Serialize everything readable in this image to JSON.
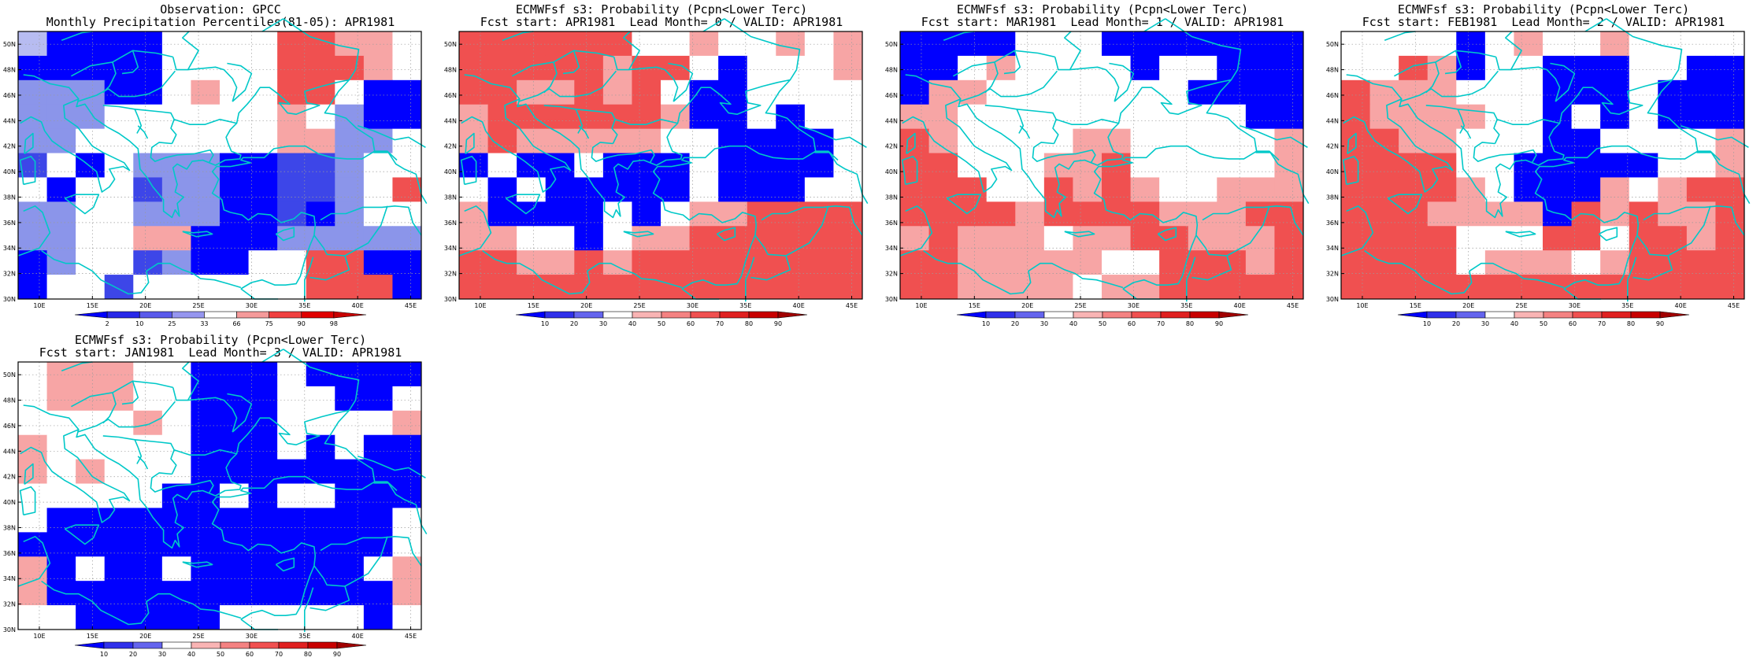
{
  "panels": [
    {
      "title": "Observation: GPCC",
      "subtitle": "Monthly Precipitation Percentiles(81-05): APR1981"
    },
    {
      "title": "ECMWFsf s3: Probability (Pcpn<Lower Terc)",
      "subtitle": "Fcst start: APR1981  Lead Month= 0 / VALID: APR1981"
    },
    {
      "title": "ECMWFsf s3: Probability (Pcpn<Lower Terc)",
      "subtitle": "Fcst start: MAR1981  Lead Month= 1 / VALID: APR1981"
    },
    {
      "title": "ECMWFsf s3: Probability (Pcpn<Lower Terc)",
      "subtitle": "Fcst start: FEB1981  Lead Month= 2 / VALID: APR1981"
    },
    {
      "title": "ECMWFsf s3: Probability (Pcpn<Lower Terc)",
      "subtitle": "Fcst start: JAN1981  Lead Month= 3 / VALID: APR1981"
    }
  ],
  "chart_data": [
    {
      "type": "heatmap",
      "grid": "obs",
      "x_ticks": [
        "10E",
        "15E",
        "20E",
        "25E",
        "30E",
        "35E",
        "40E",
        "45E"
      ],
      "y_ticks": [
        "30N",
        "32N",
        "34N",
        "36N",
        "38N",
        "40N",
        "42N",
        "44N",
        "46N",
        "48N",
        "50N"
      ],
      "colorbar_ticks": [
        "2",
        "10",
        "25",
        "33",
        "66",
        "75",
        "90",
        "98"
      ]
    },
    {
      "type": "heatmap",
      "grid": "g0",
      "x_ticks": [
        "10E",
        "15E",
        "20E",
        "25E",
        "30E",
        "35E",
        "40E",
        "45E"
      ],
      "y_ticks": [
        "30N",
        "32N",
        "34N",
        "36N",
        "38N",
        "40N",
        "42N",
        "44N",
        "46N",
        "48N",
        "50N"
      ],
      "colorbar_ticks": [
        "10",
        "20",
        "30",
        "40",
        "50",
        "60",
        "70",
        "80",
        "90"
      ]
    },
    {
      "type": "heatmap",
      "grid": "g1",
      "x_ticks": [
        "10E",
        "15E",
        "20E",
        "25E",
        "30E",
        "35E",
        "40E",
        "45E"
      ],
      "y_ticks": [
        "30N",
        "32N",
        "34N",
        "36N",
        "38N",
        "40N",
        "42N",
        "44N",
        "46N",
        "48N",
        "50N"
      ],
      "colorbar_ticks": [
        "10",
        "20",
        "30",
        "40",
        "50",
        "60",
        "70",
        "80",
        "90"
      ]
    },
    {
      "type": "heatmap",
      "grid": "g2",
      "x_ticks": [
        "10E",
        "15E",
        "20E",
        "25E",
        "30E",
        "35E",
        "40E",
        "45E"
      ],
      "y_ticks": [
        "30N",
        "32N",
        "34N",
        "36N",
        "38N",
        "40N",
        "42N",
        "44N",
        "46N",
        "48N",
        "50N"
      ],
      "colorbar_ticks": [
        "10",
        "20",
        "30",
        "40",
        "50",
        "60",
        "70",
        "80",
        "90"
      ]
    },
    {
      "type": "heatmap",
      "grid": "g3",
      "x_ticks": [
        "10E",
        "15E",
        "20E",
        "25E",
        "30E",
        "35E",
        "40E",
        "45E"
      ],
      "y_ticks": [
        "30N",
        "32N",
        "34N",
        "36N",
        "38N",
        "40N",
        "42N",
        "44N",
        "46N",
        "48N",
        "50N"
      ],
      "colorbar_ticks": [
        "10",
        "20",
        "30",
        "40",
        "50",
        "60",
        "70",
        "80",
        "90"
      ]
    }
  ],
  "grids": {
    "obs": [
      "9KKKKWWWWRRSSW",
      "KKKKKWWWWRRRSW",
      "LLLKKWSWWRRWKK",
      "LLLWWWWWWSWLKK",
      "LLWWWWWWWSSLLW",
      "MWKWLLLKKMMLWW",
      "WKWWMLLKKMMLWR",
      "LLWWLLLKKMKLWW",
      "LLWWSSKKKLLLLL",
      "KLWWMLKKWWRRKK",
      "KWWMWWWWWWRRRK"
    ],
    "g0": [
      "RRRRRRWWSWWSWS",
      "RRRRRSRRWKWWWS",
      "RRSSRSRWKKWWWW",
      "SRRRRRRSKKWKWW",
      "SRSSSSSWWKKKKW",
      "KWKKWKKKWKKKKW",
      "WKWKKKKKWKKKWW",
      "SKKKKWKWSSRRRR",
      "SSWWKWSSRRRRRR",
      "RRSSRSRRRRRRRR",
      "RRRRRRRRRRRRRR"
    ],
    "g1": [
      "KKKKWWWKKKKKKK",
      "KKWSWWWWKWWKKK",
      "KSSWWWWWWWKKKK",
      "SSWWWWWWWWWWKK",
      "RSWWWWSSWWWWWS",
      "RRWWWSSRWWWWWS",
      "RRRWWRSRSWWSSS",
      "RRRRSRRRRSSSRR",
      "SRSSSWSSRRSSSR",
      "RRSSSSSWWRRRSR",
      "RRSSSSWSSRRRRR"
    ],
    "g2": [
      "WWWWKWSWWSWWWW",
      "WWRSKWWKKKWWKK",
      "RSSSWWWKKKWKKK",
      "RSSSSWWKWKWKKK",
      "RRSSWWWKKWWWWS",
      "RRRRWWKKKKKWWS",
      "RRRRSWKKKSWSRR",
      "RRRSSSSKRSRSSR",
      "RRRRWWWRRWRRSR",
      "RRRRWSSSWSRRRR",
      "RRRRRRRRRRRRRR"
    ],
    "g3": [
      "WSSSWWKKKWKKKK",
      "WSSSWWKKKWWKKW",
      "WWWWSWKKKWWWWS",
      "SWWWWWKKKWKWKK",
      "SWSWWWKKKKKKKK",
      "WWWWWKKWKWWKKK",
      "WKKKKKKKKKKKKW",
      "KKKKKKKKKKKKKW",
      "SKWKKWKKKKKKWS",
      "SKKKKKKKKKKKKS",
      "WWKKKKKWWWWWKW"
    ]
  },
  "colors": {
    "ocean_fill": "#ffffff",
    "coastline": "#00c8c8",
    "frame": "#000000",
    "blue_strong": "#0000ff",
    "blue_medium": "#3d46e8",
    "blue_light": "#8b95ea",
    "blue_pale": "#b7bcf1",
    "red_pale": "#f7a5a5",
    "red_medium": "#f05050",
    "red_strong": "#e01818",
    "red_dark": "#c80000",
    "colorbar_obs": [
      "#0000ff",
      "#2828e8",
      "#5a5aeb",
      "#9696ef",
      "#ffffff",
      "#f59a9a",
      "#f04040",
      "#e00000",
      "#c80000"
    ],
    "colorbar_fc": [
      "#0000ff",
      "#3030ea",
      "#6464ee",
      "#ffffff",
      "#f9b4b4",
      "#f48282",
      "#f05050",
      "#e02020",
      "#c80000",
      "#a00000"
    ]
  }
}
